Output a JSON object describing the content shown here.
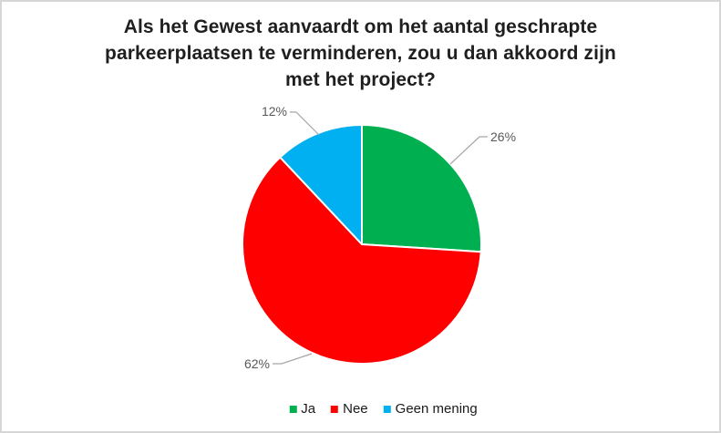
{
  "frame": {
    "background": "#ffffff",
    "border_color": "#d6d6d6"
  },
  "title_lines": [
    "Als het Gewest aanvaardt om het aantal geschrapte",
    "parkeerplaatsen te verminderen, zou u dan akkoord zijn",
    "met het project?"
  ],
  "chart_data": {
    "type": "pie",
    "title": "Als het Gewest aanvaardt om het aantal geschrapte parkeerplaatsen te verminderen, zou u dan akkoord zijn met het project?",
    "categories": [
      "Ja",
      "Nee",
      "Geen mening"
    ],
    "values": [
      26,
      62,
      12
    ],
    "unit": "%",
    "data_labels": [
      "26%",
      "62%",
      "12%"
    ],
    "colors": [
      "#00B050",
      "#FF0000",
      "#00B0F0"
    ],
    "slice_border_color": "#ffffff",
    "data_label_color": "#595959",
    "leader_line_color": "#a6a6a6",
    "start_angle_deg": 0,
    "direction": "clockwise",
    "legend_position": "bottom",
    "grid": false
  },
  "legend": {
    "items": [
      {
        "label": "Ja",
        "color": "#00B050"
      },
      {
        "label": "Nee",
        "color": "#FF0000"
      },
      {
        "label": "Geen mening",
        "color": "#00B0F0"
      }
    ]
  }
}
